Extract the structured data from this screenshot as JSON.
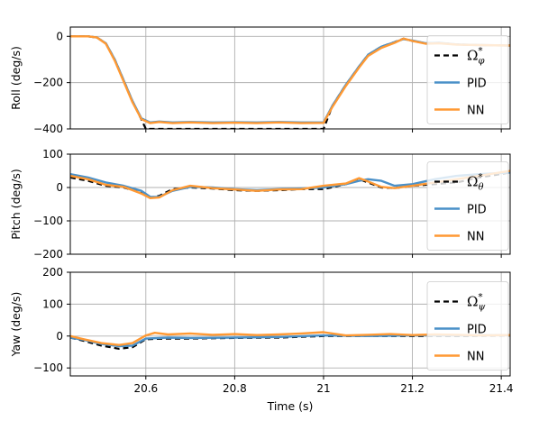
{
  "chart_data": [
    {
      "type": "line",
      "id": "roll",
      "ylabel": "Roll (deg/s)",
      "xlim": [
        20.43,
        21.42
      ],
      "ylim": [
        -400,
        40
      ],
      "yticks": [
        0,
        -200,
        -400
      ],
      "grid": true,
      "legend_position": "right",
      "series": [
        {
          "name": "Ω*_φ",
          "color": "#000000",
          "style": "dashed",
          "x": [
            20.43,
            20.47,
            20.49,
            20.51,
            20.53,
            20.55,
            20.57,
            20.59,
            20.6,
            21.0,
            21.02,
            21.05,
            21.08,
            21.1,
            21.13,
            21.16,
            21.18,
            21.2,
            21.23,
            21.26,
            21.3,
            21.35,
            21.42
          ],
          "y": [
            0,
            0,
            -5,
            -30,
            -100,
            -190,
            -280,
            -360,
            -400,
            -400,
            -300,
            -210,
            -130,
            -80,
            -45,
            -25,
            -10,
            -20,
            -30,
            -28,
            -35,
            -38,
            -40
          ]
        },
        {
          "name": "PID",
          "color": "#4a90c8",
          "style": "solid",
          "x": [
            20.43,
            20.47,
            20.49,
            20.51,
            20.53,
            20.55,
            20.57,
            20.59,
            20.61,
            20.63,
            20.66,
            20.7,
            20.75,
            20.8,
            20.85,
            20.9,
            20.95,
            21.0,
            21.02,
            21.05,
            21.08,
            21.1,
            21.13,
            21.16,
            21.18,
            21.2,
            21.23,
            21.26,
            21.3,
            21.35,
            21.42
          ],
          "y": [
            0,
            0,
            -5,
            -30,
            -100,
            -190,
            -280,
            -355,
            -372,
            -368,
            -372,
            -370,
            -372,
            -371,
            -372,
            -370,
            -372,
            -372,
            -300,
            -210,
            -130,
            -80,
            -45,
            -25,
            -12,
            -18,
            -30,
            -28,
            -35,
            -38,
            -40
          ]
        },
        {
          "name": "NN",
          "color": "#ff9933",
          "style": "solid",
          "x": [
            20.43,
            20.47,
            20.49,
            20.51,
            20.53,
            20.55,
            20.57,
            20.59,
            20.61,
            20.63,
            20.66,
            20.7,
            20.75,
            20.8,
            20.85,
            20.9,
            20.95,
            21.0,
            21.02,
            21.05,
            21.08,
            21.1,
            21.13,
            21.16,
            21.18,
            21.2,
            21.23,
            21.26,
            21.3,
            21.35,
            21.42
          ],
          "y": [
            0,
            0,
            -5,
            -32,
            -105,
            -195,
            -285,
            -358,
            -375,
            -370,
            -375,
            -372,
            -375,
            -373,
            -375,
            -372,
            -375,
            -374,
            -305,
            -215,
            -135,
            -85,
            -50,
            -28,
            -10,
            -20,
            -32,
            -30,
            -36,
            -38,
            -40
          ]
        }
      ]
    },
    {
      "type": "line",
      "id": "pitch",
      "ylabel": "Pitch (deg/s)",
      "xlim": [
        20.43,
        21.42
      ],
      "ylim": [
        -200,
        100
      ],
      "yticks": [
        100,
        0,
        -100,
        -200
      ],
      "grid": true,
      "legend_position": "right",
      "series": [
        {
          "name": "Ω*_θ",
          "color": "#000000",
          "style": "dashed",
          "x": [
            20.43,
            20.47,
            20.51,
            20.55,
            20.59,
            20.61,
            20.63,
            20.66,
            20.7,
            20.75,
            20.8,
            20.85,
            20.9,
            20.95,
            21.0,
            21.05,
            21.08,
            21.1,
            21.13,
            21.16,
            21.2,
            21.25,
            21.3,
            21.35,
            21.42
          ],
          "y": [
            30,
            20,
            5,
            0,
            -15,
            -30,
            -25,
            -5,
            0,
            -3,
            -8,
            -10,
            -8,
            -5,
            -5,
            10,
            25,
            15,
            0,
            -2,
            5,
            10,
            15,
            30,
            45
          ]
        },
        {
          "name": "PID",
          "color": "#4a90c8",
          "style": "solid",
          "x": [
            20.43,
            20.47,
            20.51,
            20.55,
            20.59,
            20.61,
            20.63,
            20.66,
            20.7,
            20.75,
            20.8,
            20.85,
            20.9,
            20.95,
            21.0,
            21.05,
            21.08,
            21.1,
            21.13,
            21.16,
            21.2,
            21.25,
            21.3,
            21.35,
            21.42
          ],
          "y": [
            40,
            30,
            15,
            5,
            -10,
            -28,
            -28,
            -10,
            2,
            0,
            -5,
            -8,
            -5,
            -3,
            0,
            10,
            20,
            25,
            20,
            5,
            10,
            25,
            35,
            40,
            45
          ]
        },
        {
          "name": "NN",
          "color": "#ff9933",
          "style": "solid",
          "x": [
            20.43,
            20.47,
            20.51,
            20.55,
            20.59,
            20.61,
            20.63,
            20.66,
            20.7,
            20.75,
            20.8,
            20.85,
            20.9,
            20.95,
            21.0,
            21.05,
            21.08,
            21.1,
            21.13,
            21.16,
            21.2,
            21.25,
            21.3,
            21.35,
            21.42
          ],
          "y": [
            35,
            25,
            8,
            2,
            -18,
            -32,
            -30,
            -8,
            5,
            -2,
            -6,
            -10,
            -6,
            -5,
            5,
            12,
            28,
            18,
            2,
            -2,
            5,
            15,
            25,
            35,
            50
          ]
        }
      ]
    },
    {
      "type": "line",
      "id": "yaw",
      "ylabel": "Yaw (deg/s)",
      "xlabel": "Time (s)",
      "xlim": [
        20.43,
        21.42
      ],
      "ylim": [
        -125,
        200
      ],
      "yticks": [
        200,
        100,
        0,
        -100
      ],
      "xticks": [
        20.6,
        20.8,
        21.0,
        21.2,
        21.4
      ],
      "grid": true,
      "legend_position": "right",
      "series": [
        {
          "name": "Ω*_ψ",
          "color": "#000000",
          "style": "dashed",
          "x": [
            20.43,
            20.46,
            20.5,
            20.54,
            20.57,
            20.6,
            20.65,
            20.7,
            20.8,
            20.9,
            21.0,
            21.1,
            21.2,
            21.3,
            21.42
          ],
          "y": [
            -5,
            -15,
            -30,
            -40,
            -35,
            -10,
            -8,
            -8,
            -6,
            -5,
            0,
            0,
            0,
            0,
            2
          ]
        },
        {
          "name": "PID",
          "color": "#4a90c8",
          "style": "solid",
          "x": [
            20.43,
            20.46,
            20.5,
            20.54,
            20.57,
            20.6,
            20.65,
            20.7,
            20.8,
            20.9,
            21.0,
            21.1,
            21.2,
            21.3,
            21.42
          ],
          "y": [
            -5,
            -12,
            -25,
            -32,
            -30,
            -8,
            -5,
            -6,
            -5,
            -3,
            2,
            0,
            2,
            2,
            3
          ]
        },
        {
          "name": "NN",
          "color": "#ff9933",
          "style": "solid",
          "x": [
            20.43,
            20.46,
            20.5,
            20.54,
            20.57,
            20.6,
            20.62,
            20.65,
            20.7,
            20.75,
            20.8,
            20.85,
            20.9,
            20.95,
            21.0,
            21.05,
            21.1,
            21.15,
            21.2,
            21.25,
            21.3,
            21.35,
            21.42
          ],
          "y": [
            0,
            -10,
            -22,
            -28,
            -22,
            2,
            10,
            5,
            8,
            4,
            6,
            3,
            5,
            8,
            12,
            2,
            4,
            6,
            3,
            5,
            4,
            2,
            3
          ]
        }
      ]
    }
  ]
}
